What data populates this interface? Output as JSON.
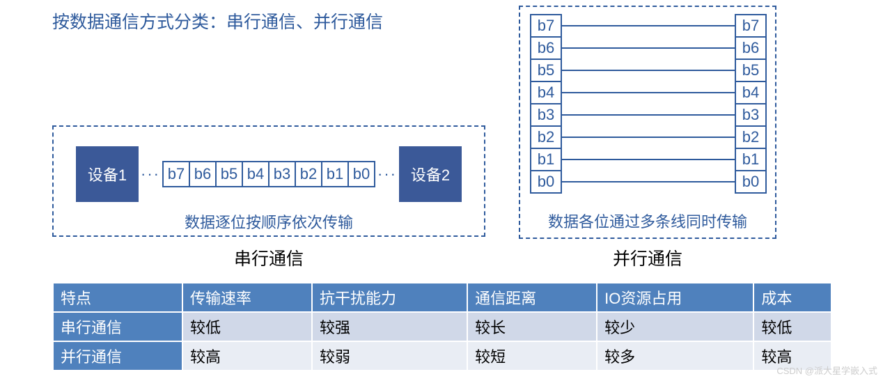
{
  "title": "按数据通信方式分类：串行通信、并行通信",
  "serial": {
    "device1": "设备1",
    "device2": "设备2",
    "dots": "···",
    "bits": [
      "b7",
      "b6",
      "b5",
      "b4",
      "b3",
      "b2",
      "b1",
      "b0"
    ],
    "caption": "数据逐位按顺序依次传输",
    "label": "串行通信",
    "device_bg": "#3b5998",
    "border_color": "#2e5a9c"
  },
  "parallel": {
    "bits": [
      "b7",
      "b6",
      "b5",
      "b4",
      "b3",
      "b2",
      "b1",
      "b0"
    ],
    "caption": "数据各位通过多条线同时传输",
    "label": "并行通信",
    "border_color": "#2e5a9c"
  },
  "table": {
    "headers": [
      "特点",
      "传输速率",
      "抗干扰能力",
      "通信距离",
      "IO资源占用",
      "成本"
    ],
    "rows": [
      [
        "串行通信",
        "较低",
        "较强",
        "较长",
        "较少",
        "较低"
      ],
      [
        "并行通信",
        "较高",
        "较弱",
        "较短",
        "较多",
        "较高"
      ]
    ],
    "header_bg": "#4f81bd",
    "row1_bg": "#d0d8e8",
    "row2_bg": "#e9edf4",
    "border_color": "#ffffff"
  },
  "watermark": "CSDN @派大星学嵌入式"
}
